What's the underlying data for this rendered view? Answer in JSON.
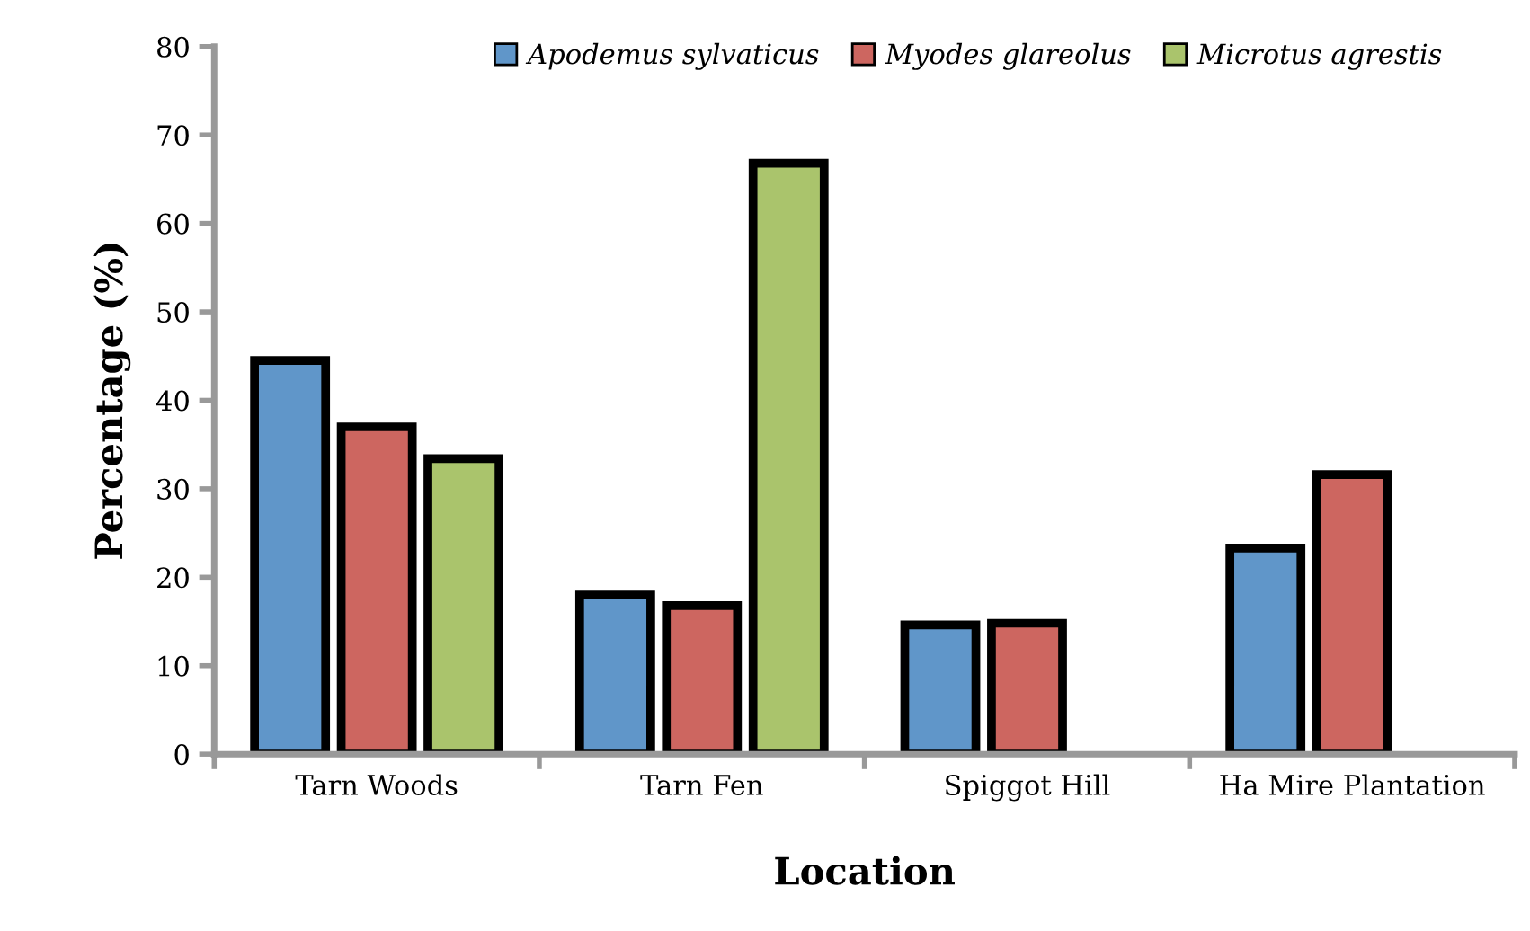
{
  "chart_data": {
    "type": "bar",
    "xlabel": "Location",
    "ylabel": "Percentage (%)",
    "categories": [
      "Tarn Woods",
      "Tarn Fen",
      "Spiggot Hill",
      "Ha Mire Plantation"
    ],
    "series": [
      {
        "name": "Apodemus sylvaticus",
        "color": "#6096c9",
        "values": [
          44.5,
          18,
          14.6,
          23.3
        ]
      },
      {
        "name": "Myodes glareolus",
        "color": "#cd6660",
        "values": [
          37,
          16.8,
          14.8,
          31.6
        ]
      },
      {
        "name": "Microtus agrestis",
        "color": "#aac46c",
        "values": [
          33.4,
          66.8,
          null,
          null
        ]
      }
    ],
    "ylim": [
      0,
      80
    ],
    "yticks": [
      0,
      10,
      20,
      30,
      40,
      50,
      60,
      70,
      80
    ],
    "grid": false,
    "legend": "top"
  }
}
